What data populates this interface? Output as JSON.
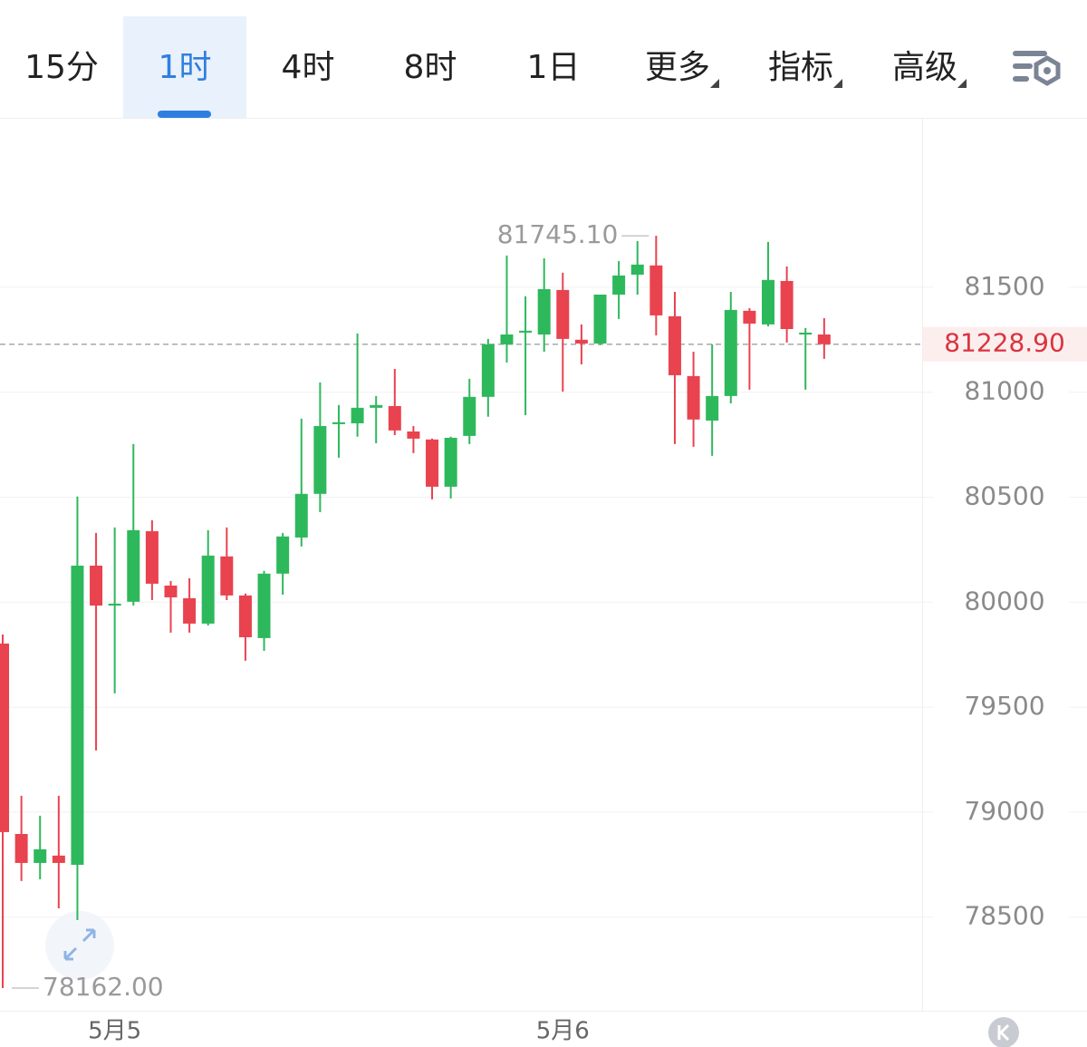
{
  "tabs": [
    "15分",
    "1时",
    "4时",
    "8时",
    "1日",
    "更多",
    "指标",
    "高级"
  ],
  "active_tab": 1,
  "chart_data": {
    "type": "candlestick",
    "categories": [
      null,
      null,
      null,
      null,
      null,
      null,
      "5月5",
      null,
      null,
      null,
      null,
      null,
      null,
      null,
      null,
      null,
      null,
      null,
      null,
      null,
      null,
      null,
      null,
      null,
      null,
      null,
      null,
      null,
      null,
      null,
      "5月6",
      null,
      null,
      null,
      null,
      null,
      null,
      null,
      null,
      null,
      null,
      null,
      null,
      null,
      null
    ],
    "open": [
      79803,
      78896,
      78758,
      78793,
      78749,
      80174,
      79984,
      80002,
      80338,
      80079,
      80019,
      79898,
      80218,
      80032,
      79829,
      80136,
      80308,
      80516,
      80848,
      80852,
      80926,
      80934,
      80813,
      80775,
      80550,
      80792,
      80978,
      81228,
      81284,
      81275,
      81487,
      81250,
      81232,
      81465,
      81560,
      81604,
      81362,
      81077,
      80865,
      80982,
      81388,
      81323,
      81530,
      81275,
      81275
    ],
    "high": [
      79846,
      79078,
      78983,
      79078,
      80503,
      80330,
      80356,
      80753,
      80390,
      80101,
      80114,
      80343,
      80356,
      80041,
      80149,
      80330,
      80874,
      81047,
      80939,
      81280,
      80982,
      81111,
      80839,
      80779,
      80788,
      81064,
      81254,
      81651,
      81457,
      81638,
      81569,
      81323,
      81465,
      81625,
      81720,
      81745.1,
      81478,
      81193,
      81228,
      81478,
      81401,
      81716,
      81599,
      81306,
      81353
    ],
    "low": [
      78162,
      78672,
      78680,
      78542,
      78486,
      79294,
      79566,
      79984,
      80010,
      79855,
      79855,
      79889,
      80010,
      79721,
      79768,
      80036,
      80265,
      80429,
      80688,
      80788,
      80757,
      80796,
      80710,
      80490,
      80494,
      80753,
      80883,
      81142,
      80891,
      81193,
      81003,
      81133,
      81224,
      81349,
      81465,
      81271,
      80753,
      80740,
      80697,
      80947,
      81012,
      81314,
      81237,
      81012,
      81159
    ],
    "close": [
      78905,
      78758,
      78823,
      78758,
      80174,
      79984,
      79993,
      80343,
      80088,
      80023,
      79898,
      80222,
      80032,
      79833,
      80136,
      80313,
      80516,
      80839,
      80857,
      80926,
      80939,
      80818,
      80779,
      80550,
      80783,
      80978,
      81228,
      81275,
      81293,
      81491,
      81254,
      81232,
      81465,
      81556,
      81608,
      81366,
      81081,
      80870,
      80982,
      81392,
      81327,
      81535,
      81301,
      81284,
      81228.9
    ],
    "up_color": "#2eb85c",
    "down_color": "#e8434f",
    "ylim": [
      78054,
      82307
    ],
    "yticks": [
      78500,
      79000,
      79500,
      80000,
      80500,
      81000,
      81500
    ],
    "grid": true,
    "high_label": "81745.10",
    "low_label": "78162.00",
    "last_price": {
      "value": 81228.9,
      "label": "81228.90"
    }
  }
}
